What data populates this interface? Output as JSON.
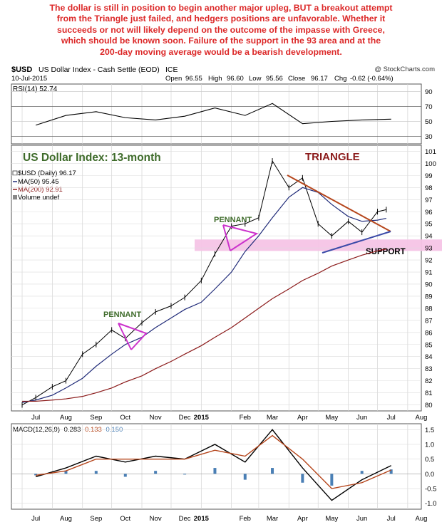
{
  "commentary": {
    "lines": [
      "The dollar is still in position to begin another major upleg, BUT a breakout attempt",
      "from the Triangle just failed, and hedgers positions are unfavorable. Whether it",
      "succeeds or not will likely depend on the outcome of the impasse with Greece,",
      "which should be known soon. Failure of the support in the 93 area and at the",
      "200-day moving average would be a bearish development."
    ],
    "color": "#dc2828"
  },
  "header": {
    "symbol": "$USD",
    "name": "US Dollar Index - Cash Settle (EOD)",
    "exchange": "ICE",
    "credit": "@ StockCharts.com",
    "date": "10-Jul-2015",
    "open_label": "Open",
    "open": "96.55",
    "high_label": "High",
    "high": "96.60",
    "low_label": "Low",
    "low": "95.56",
    "close_label": "Close",
    "close": "96.17",
    "chg_label": "Chg",
    "chg": "-0.62 (-0.64%)"
  },
  "rsi_panel": {
    "label": "RSI(14) 52.74",
    "value": 52.74,
    "yticks": [
      "90",
      "70",
      "50",
      "30"
    ]
  },
  "price_panel": {
    "title": "US Dollar Index: 13-month",
    "legend": [
      {
        "text": "$USD (Daily) 96.17",
        "color": "#000000"
      },
      {
        "text": "MA(50) 95.45",
        "color": "#1f2a78"
      },
      {
        "text": "MA(200) 92.91",
        "color": "#8b1a1a"
      },
      {
        "text": "Volume undef",
        "color": "#000000"
      }
    ],
    "annotations": {
      "triangle": "TRIANGLE",
      "pennant_upper": "PENNANT",
      "pennant_lower": "PENNANT",
      "support": "SUPPORT"
    },
    "yticks": [
      "101",
      "100",
      "99",
      "98",
      "97",
      "96",
      "95",
      "94",
      "93",
      "92",
      "91",
      "90",
      "89",
      "88",
      "87",
      "86",
      "85",
      "84",
      "83",
      "82",
      "81",
      "80"
    ]
  },
  "macd_panel": {
    "label_prefix": "MACD(12,26,9)",
    "macd": "0.283",
    "signal": "0.133",
    "histogram": "0.150",
    "yticks": [
      "1.5",
      "1.0",
      "0.5",
      "0.0",
      "-0.5",
      "-1.0"
    ]
  },
  "x_axis": [
    "Jul",
    "Aug",
    "Sep",
    "Oct",
    "Nov",
    "Dec",
    "2015",
    "Feb",
    "Mar",
    "Apr",
    "May",
    "Jun",
    "Jul",
    "Aug"
  ],
  "colors": {
    "triangle_upper": "#b5451b",
    "triangle_lower": "#3b4aa8",
    "pennant": "#cc33cc",
    "support_band": "#f6c4e6",
    "ma50": "#1f2a78",
    "ma200": "#8b1a1a",
    "macd_hist": "#4a7fb5",
    "annotation_green": "#3e6b2a",
    "annotation_red": "#8b1a1a"
  },
  "chart_data": [
    {
      "type": "line",
      "title": "RSI(14)",
      "ylim": [
        20,
        100
      ],
      "x": [
        "2014-07",
        "2014-08",
        "2014-09",
        "2014-10",
        "2014-11",
        "2014-12",
        "2015-01",
        "2015-02",
        "2015-03",
        "2015-04",
        "2015-05",
        "2015-06",
        "2015-07"
      ],
      "series": [
        {
          "name": "RSI(14)",
          "values": [
            45,
            58,
            63,
            55,
            52,
            57,
            68,
            58,
            74,
            47,
            50,
            52,
            53
          ]
        }
      ]
    },
    {
      "type": "line",
      "title": "US Dollar Index: 13-month",
      "ylim": [
        79.5,
        101.5
      ],
      "x": [
        "2014-07-01",
        "2014-07-15",
        "2014-08-01",
        "2014-08-15",
        "2014-09-01",
        "2014-09-15",
        "2014-10-01",
        "2014-10-15",
        "2014-11-01",
        "2014-11-15",
        "2014-12-01",
        "2014-12-15",
        "2015-01-01",
        "2015-01-15",
        "2015-02-01",
        "2015-02-15",
        "2015-03-01",
        "2015-03-15",
        "2015-04-01",
        "2015-04-15",
        "2015-05-01",
        "2015-05-15",
        "2015-06-01",
        "2015-06-15",
        "2015-07-01",
        "2015-07-10"
      ],
      "series": [
        {
          "name": "$USD (Daily)",
          "values": [
            80.0,
            80.6,
            81.5,
            82.0,
            84.2,
            85.0,
            86.2,
            85.5,
            86.8,
            87.7,
            88.2,
            88.9,
            90.3,
            92.5,
            94.8,
            95.0,
            95.5,
            100.2,
            98.0,
            98.8,
            95.0,
            94.0,
            95.2,
            94.3,
            96.0,
            96.17
          ]
        },
        {
          "name": "MA(50)",
          "values": [
            80.2,
            80.4,
            80.8,
            81.4,
            82.2,
            83.2,
            84.2,
            85.0,
            85.6,
            86.4,
            87.2,
            87.9,
            88.5,
            89.6,
            91.0,
            92.7,
            94.0,
            95.5,
            97.2,
            98.0,
            97.6,
            96.6,
            95.6,
            95.2,
            95.3,
            95.45
          ]
        },
        {
          "name": "MA(200)",
          "values": [
            80.3,
            80.3,
            80.4,
            80.5,
            80.7,
            81.0,
            81.4,
            81.9,
            82.4,
            83.0,
            83.6,
            84.2,
            84.9,
            85.6,
            86.4,
            87.2,
            88.0,
            88.8,
            89.6,
            90.3,
            90.9,
            91.5,
            92.0,
            92.4,
            92.75,
            92.91
          ]
        }
      ]
    },
    {
      "type": "line",
      "title": "MACD(12,26,9)",
      "ylim": [
        -1.2,
        1.7
      ],
      "x": [
        "2014-07",
        "2014-08",
        "2014-09",
        "2014-10",
        "2014-11",
        "2014-12",
        "2015-01",
        "2015-02",
        "2015-03",
        "2015-04",
        "2015-05",
        "2015-06",
        "2015-07"
      ],
      "series": [
        {
          "name": "MACD",
          "values": [
            -0.1,
            0.2,
            0.6,
            0.4,
            0.6,
            0.5,
            1.0,
            0.4,
            1.5,
            0.2,
            -0.9,
            -0.2,
            0.28
          ]
        },
        {
          "name": "Signal",
          "values": [
            -0.05,
            0.1,
            0.5,
            0.5,
            0.5,
            0.5,
            0.8,
            0.6,
            1.3,
            0.5,
            -0.5,
            -0.3,
            0.13
          ]
        }
      ]
    }
  ]
}
